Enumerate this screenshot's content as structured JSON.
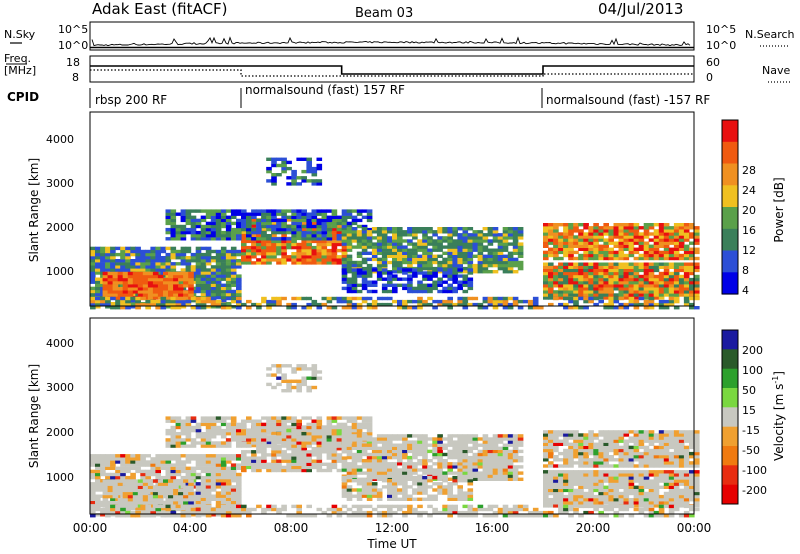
{
  "header": {
    "title": "Adak East (fitACF)",
    "beam": "Beam 03",
    "date": "04/Jul/2013"
  },
  "left_labels": {
    "nsky": "N.Sky",
    "freq": "Freq.",
    "freq_unit": "[MHz]",
    "cpid": "CPID"
  },
  "right_labels": {
    "nsearch": "N.Search",
    "nave": "Nave"
  },
  "colors": {
    "power": [
      "#0000e6",
      "#2c4fd6",
      "#3a7f5a",
      "#5aa04a",
      "#f0c020",
      "#f09020",
      "#f05a10",
      "#e81010"
    ],
    "velocity": [
      "#1a1aa0",
      "#2a5a2a",
      "#2ca02c",
      "#7ad840",
      "#c8c8c0",
      "#f0a030",
      "#f07a10",
      "#e82c10",
      "#e60000"
    ]
  },
  "chart_data": [
    {
      "type": "line",
      "name": "noise",
      "ylabel_left": "N.Sky",
      "ylabel_right": "N.Search",
      "yticks_left": [
        "10^5",
        "10^0"
      ],
      "yticks_right": [
        "10^5",
        "10^0"
      ]
    },
    {
      "type": "line",
      "name": "frequency",
      "yticks_left": [
        "18",
        "8"
      ],
      "yticks_right": [
        "60",
        "0"
      ],
      "x": [
        "00:00",
        "06:00",
        "10:00",
        "18:00",
        "24:00"
      ],
      "freq_level": [
        "high",
        "high",
        "low",
        "high"
      ]
    },
    {
      "type": "table",
      "name": "cpid",
      "segments": [
        {
          "label": "rbsp 200 RF",
          "start": "00:00"
        },
        {
          "label": "normalsound (fast) 157 RF",
          "start": "06:00"
        },
        {
          "label": "normalsound (fast) -157 RF",
          "start": "18:00"
        }
      ]
    },
    {
      "type": "heatmap",
      "name": "power",
      "ylabel": "Slant Range [km]",
      "yticks": [
        "4000",
        "3000",
        "2000",
        "1000"
      ],
      "ylim": [
        180,
        4600
      ],
      "colorbar_label": "Power [dB]",
      "colorbar_ticks": [
        "28",
        "24",
        "20",
        "16",
        "12",
        "8",
        "4"
      ],
      "clim": [
        0,
        30
      ]
    },
    {
      "type": "heatmap",
      "name": "velocity",
      "ylabel": "Slant Range [km]",
      "yticks": [
        "4000",
        "3000",
        "2000",
        "1000"
      ],
      "ylim": [
        180,
        4600
      ],
      "colorbar_label": "Velocity [m s",
      "colorbar_label_sup": "-1",
      "colorbar_label_end": "]",
      "colorbar_ticks": [
        "200",
        "100",
        "50",
        "15",
        "-15",
        "-50",
        "-100",
        "-200"
      ],
      "clim": [
        -250,
        250
      ]
    }
  ],
  "xaxis": {
    "ticks": [
      "00:00",
      "04:00",
      "08:00",
      "12:00",
      "16:00",
      "20:00",
      "00:00"
    ],
    "label": "Time UT"
  }
}
